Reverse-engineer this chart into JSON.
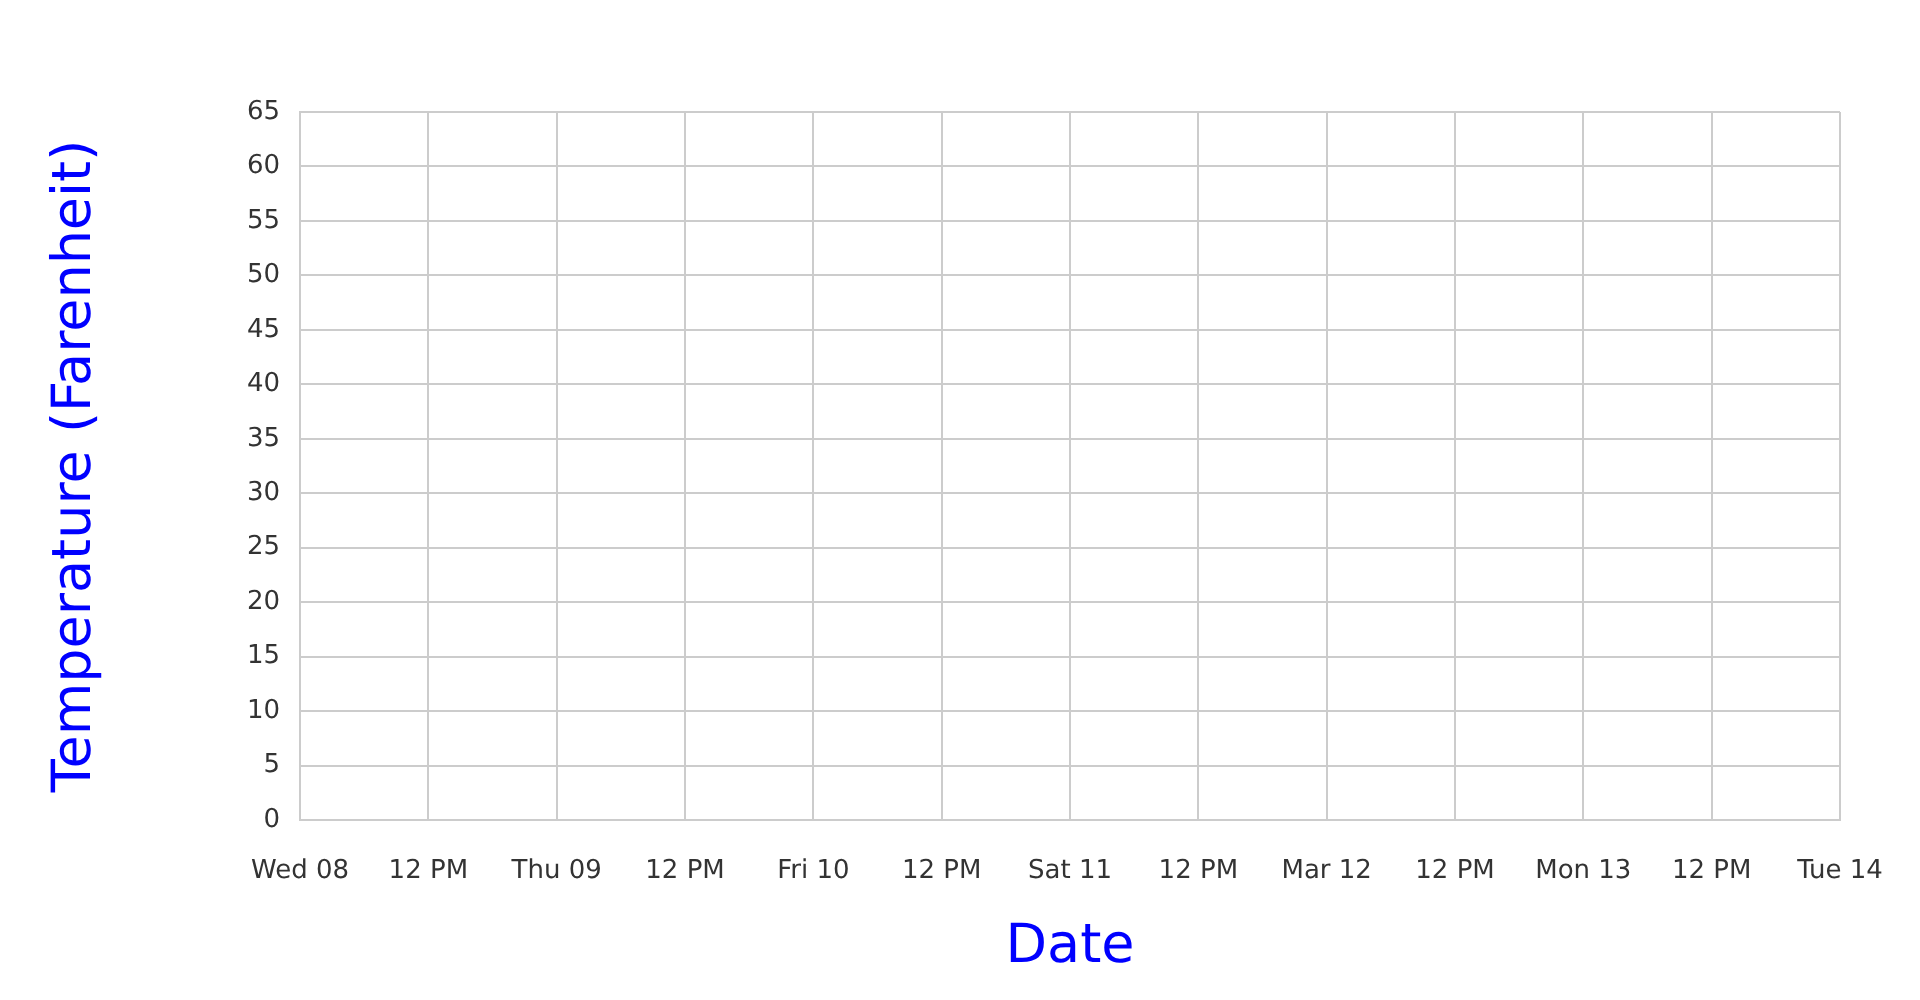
{
  "chart_data": {
    "type": "line",
    "xlabel": "Date",
    "ylabel": "Temperature (Farenheit)",
    "xlim": [
      "--03-08T00:00",
      "--03-14T00:00"
    ],
    "xticks": [
      {
        "value": "--03-08T00:00",
        "label": "Wed 08"
      },
      {
        "value": "--03-08T12:00",
        "label": "12 PM"
      },
      {
        "value": "--03-09T00:00",
        "label": "Thu 09"
      },
      {
        "value": "--03-09T12:00",
        "label": "12 PM"
      },
      {
        "value": "--03-10T00:00",
        "label": "Fri 10"
      },
      {
        "value": "--03-10T12:00",
        "label": "12 PM"
      },
      {
        "value": "--03-11T00:00",
        "label": "Sat 11"
      },
      {
        "value": "--03-11T12:00",
        "label": "12 PM"
      },
      {
        "value": "--03-12T00:00",
        "label": "Mar 12"
      },
      {
        "value": "--03-12T12:00",
        "label": "12 PM"
      },
      {
        "value": "--03-13T00:00",
        "label": "Mon 13"
      },
      {
        "value": "--03-13T12:00",
        "label": "12 PM"
      },
      {
        "value": "--03-14T00:00",
        "label": "Tue 14"
      }
    ],
    "ylim": [
      0,
      65
    ],
    "yticks": [
      0,
      5,
      10,
      15,
      20,
      25,
      30,
      35,
      40,
      45,
      50,
      55,
      60,
      65
    ],
    "grid": true
  }
}
